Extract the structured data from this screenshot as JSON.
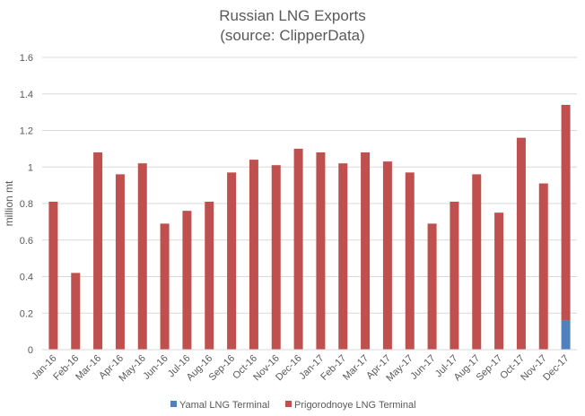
{
  "chart_data": {
    "type": "bar",
    "stacked": true,
    "title": "Russian LNG Exports",
    "subtitle": "(source: ClipperData)",
    "xlabel": "",
    "ylabel": "million mt",
    "ylim": [
      0,
      1.6
    ],
    "yticks": [
      "0",
      "0.2",
      "0.4",
      "0.6",
      "0.8",
      "1",
      "1.2",
      "1.4",
      "1.6"
    ],
    "grid": true,
    "legend_position": "bottom",
    "categories": [
      "Jan-16",
      "Feb-16",
      "Mar-16",
      "Apr-16",
      "May-16",
      "Jun-16",
      "Jul-16",
      "Aug-16",
      "Sep-16",
      "Oct-16",
      "Nov-16",
      "Dec-16",
      "Jan-17",
      "Feb-17",
      "Mar-17",
      "Apr-17",
      "May-17",
      "Jun-17",
      "Jul-17",
      "Aug-17",
      "Sep-17",
      "Oct-17",
      "Nov-17",
      "Dec-17"
    ],
    "series": [
      {
        "name": "Yamal LNG Terminal",
        "color": "#4F81BD",
        "values": [
          0,
          0,
          0,
          0,
          0,
          0,
          0,
          0,
          0,
          0,
          0,
          0,
          0,
          0,
          0,
          0,
          0,
          0,
          0,
          0,
          0,
          0,
          0,
          0.16
        ]
      },
      {
        "name": "Prigorodnoye LNG Terminal",
        "color": "#C0504D",
        "values": [
          0.81,
          0.42,
          1.08,
          0.96,
          1.02,
          0.69,
          0.76,
          0.81,
          0.97,
          1.04,
          1.01,
          1.1,
          1.08,
          1.02,
          1.08,
          1.03,
          0.97,
          0.69,
          0.81,
          0.96,
          0.75,
          1.16,
          0.91,
          1.18
        ]
      }
    ]
  }
}
